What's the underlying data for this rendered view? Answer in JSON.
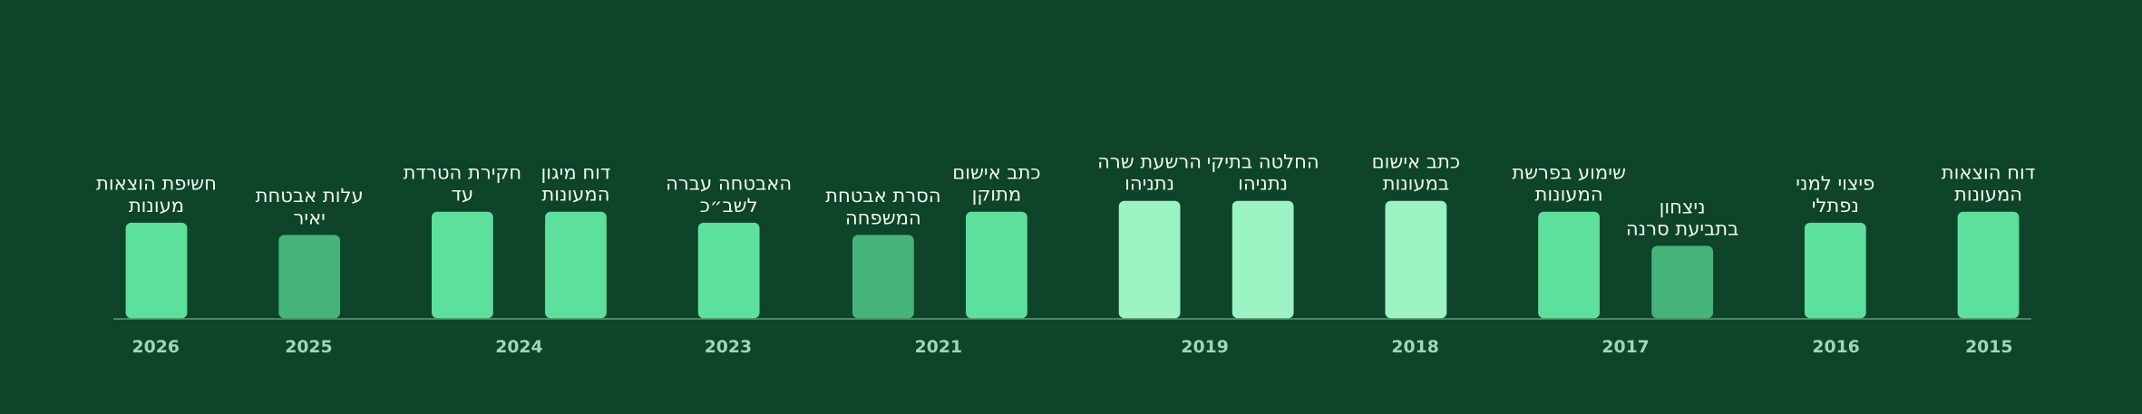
{
  "timeline": [
    {
      "year": "2015",
      "events": [
        {
          "lines": [
            "דוח הוצאות",
            "המעונות"
          ]
        }
      ]
    },
    {
      "year": "2016",
      "events": [
        {
          "lines": [
            "פיצוי למני",
            "נפתלי"
          ]
        }
      ]
    },
    {
      "year": "2017",
      "events": [
        {
          "lines": [
            "ניצחון",
            "בתביעת סרנה"
          ]
        },
        {
          "lines": [
            "שימוע בפרשת",
            "המעונות"
          ]
        }
      ]
    },
    {
      "year": "2018",
      "events": [
        {
          "lines": [
            "כתב אישום",
            "במעונות"
          ]
        }
      ]
    },
    {
      "year": "2019",
      "events": [
        {
          "lines": [
            "החלטה בתיקי",
            "נתניהו"
          ]
        },
        {
          "lines": [
            "הרשעת שרה",
            "נתניהו"
          ]
        }
      ]
    },
    {
      "year": "2021",
      "events": [
        {
          "lines": [
            "כתב אישום",
            "מתוקן"
          ]
        },
        {
          "lines": [
            "הסרת אבטחת",
            "המשפחה"
          ]
        }
      ]
    },
    {
      "year": "2023",
      "events": [
        {
          "lines": [
            "האבטחה עברה",
            "לשב״כ"
          ]
        }
      ]
    },
    {
      "year": "2024",
      "events": [
        {
          "lines": [
            "דוח מיגון",
            "המעונות"
          ]
        },
        {
          "lines": [
            "חקירת הטרדת",
            "עד"
          ]
        }
      ]
    },
    {
      "year": "2025",
      "events": [
        {
          "lines": [
            "עלות אבטחת",
            "יאיר"
          ]
        }
      ]
    },
    {
      "year": "2026",
      "events": [
        {
          "lines": [
            "חשיפת הוצאות",
            "מעונות"
          ]
        }
      ]
    }
  ]
}
